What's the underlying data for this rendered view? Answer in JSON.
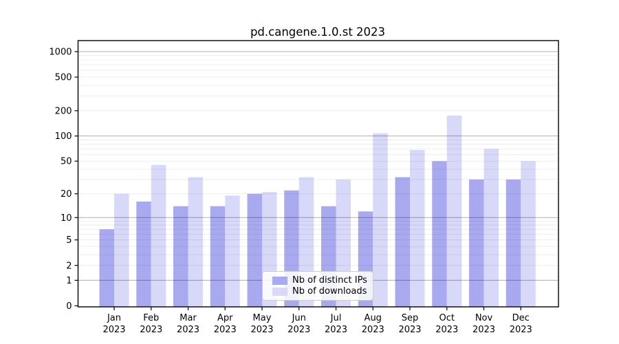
{
  "window": {
    "background": "#ffffff"
  },
  "chart_data": {
    "type": "bar",
    "title": "pd.cangene.1.0.st 2023",
    "categories": [
      "Jan",
      "Feb",
      "Mar",
      "Apr",
      "May",
      "Jun",
      "Jul",
      "Aug",
      "Sep",
      "Oct",
      "Nov",
      "Dec"
    ],
    "year_label": "2023",
    "series": [
      {
        "name": "Nb of distinct IPs",
        "color": "#a9a9f0",
        "values": [
          7,
          16,
          14,
          14,
          20,
          22,
          14,
          12,
          32,
          50,
          30,
          30
        ]
      },
      {
        "name": "Nb of downloads",
        "color": "#d8d8f8",
        "values": [
          20,
          45,
          32,
          19,
          21,
          32,
          30,
          108,
          68,
          175,
          70,
          50
        ]
      }
    ],
    "xlabel": "",
    "ylabel": "",
    "yscale": "log1p",
    "ylim": [
      0,
      1350
    ],
    "yticks": [
      0,
      1,
      2,
      5,
      10,
      20,
      50,
      100,
      200,
      500,
      1000
    ],
    "grid": {
      "major_at": [
        1,
        10,
        100,
        1000
      ],
      "minor": true
    },
    "legend_position": "lower-center"
  }
}
